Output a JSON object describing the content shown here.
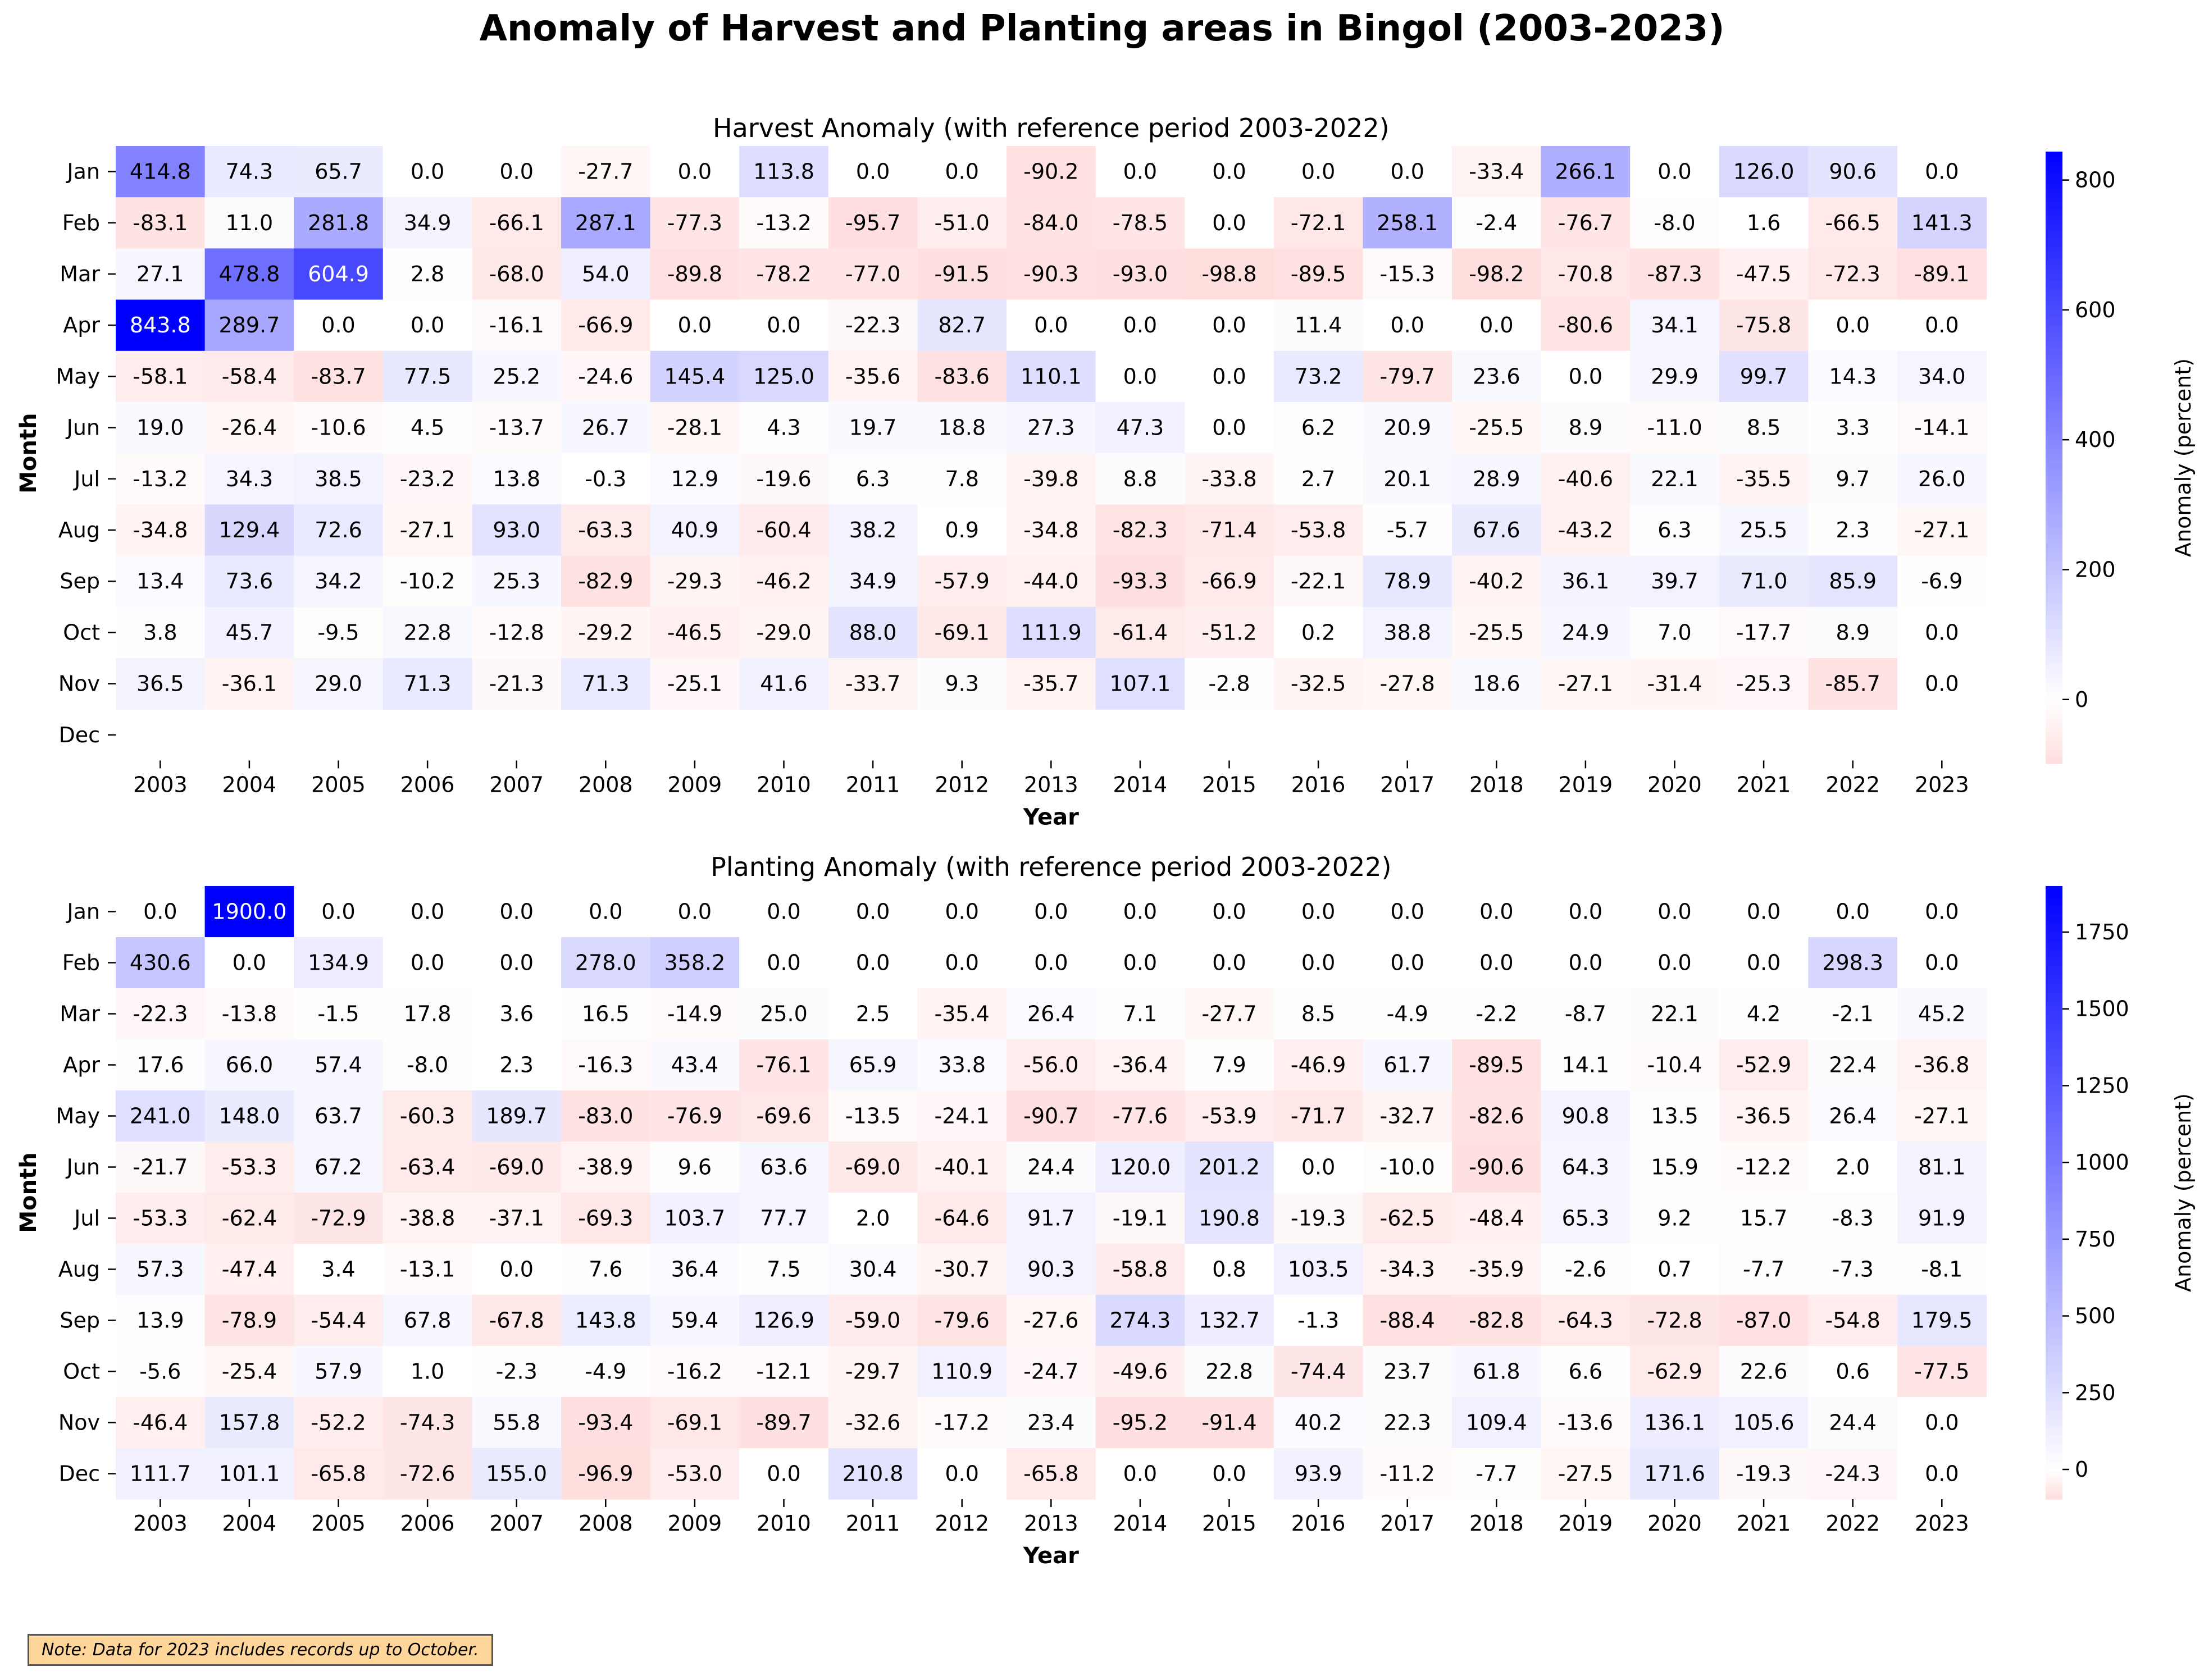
{
  "title": "Anomaly of Harvest and Planting areas in Bingol (2003-2023)",
  "note": "Note: Data for 2023 includes records up to October.",
  "colors": {
    "positive": "#0000ff",
    "zero": "#ffffff",
    "negative": "#ffdede",
    "text_dark": "#000000",
    "text_light": "#ffffff"
  },
  "chart_data": [
    {
      "type": "heatmap",
      "title": "Harvest Anomaly (with reference period 2003-2022)",
      "xlabel": "Year",
      "ylabel": "Month",
      "colorbar_label": "Anomaly (percent)",
      "colorbar_ticks": [
        0,
        200,
        400,
        600,
        800
      ],
      "vmin": -98.8,
      "vmax": 843.8,
      "x": [
        "2003",
        "2004",
        "2005",
        "2006",
        "2007",
        "2008",
        "2009",
        "2010",
        "2011",
        "2012",
        "2013",
        "2014",
        "2015",
        "2016",
        "2017",
        "2018",
        "2019",
        "2020",
        "2021",
        "2022",
        "2023"
      ],
      "y": [
        "Jan",
        "Feb",
        "Mar",
        "Apr",
        "May",
        "Jun",
        "Jul",
        "Aug",
        "Sep",
        "Oct",
        "Nov",
        "Dec"
      ],
      "values": [
        [
          414.8,
          74.3,
          65.7,
          0.0,
          0.0,
          -27.7,
          0.0,
          113.8,
          0.0,
          0.0,
          -90.2,
          0.0,
          0.0,
          0.0,
          0.0,
          -33.4,
          266.1,
          0.0,
          126.0,
          90.6,
          0.0
        ],
        [
          -83.1,
          11.0,
          281.8,
          34.9,
          -66.1,
          287.1,
          -77.3,
          -13.2,
          -95.7,
          -51.0,
          -84.0,
          -78.5,
          0.0,
          -72.1,
          258.1,
          -2.4,
          -76.7,
          -8.0,
          1.6,
          -66.5,
          141.3
        ],
        [
          27.1,
          478.8,
          604.9,
          2.8,
          -68.0,
          54.0,
          -89.8,
          -78.2,
          -77.0,
          -91.5,
          -90.3,
          -93.0,
          -98.8,
          -89.5,
          -15.3,
          -98.2,
          -70.8,
          -87.3,
          -47.5,
          -72.3,
          -89.1
        ],
        [
          843.8,
          289.7,
          0.0,
          0.0,
          -16.1,
          -66.9,
          0.0,
          0.0,
          -22.3,
          82.7,
          0.0,
          0.0,
          0.0,
          11.4,
          0.0,
          0.0,
          -80.6,
          34.1,
          -75.8,
          0.0,
          0.0
        ],
        [
          -58.1,
          -58.4,
          -83.7,
          77.5,
          25.2,
          -24.6,
          145.4,
          125.0,
          -35.6,
          -83.6,
          110.1,
          0.0,
          0.0,
          73.2,
          -79.7,
          23.6,
          0.0,
          29.9,
          99.7,
          14.3,
          34.0
        ],
        [
          19.0,
          -26.4,
          -10.6,
          4.5,
          -13.7,
          26.7,
          -28.1,
          4.3,
          19.7,
          18.8,
          27.3,
          47.3,
          0.0,
          6.2,
          20.9,
          -25.5,
          8.9,
          -11.0,
          8.5,
          3.3,
          -14.1
        ],
        [
          -13.2,
          34.3,
          38.5,
          -23.2,
          13.8,
          -0.3,
          12.9,
          -19.6,
          6.3,
          7.8,
          -39.8,
          8.8,
          -33.8,
          2.7,
          20.1,
          28.9,
          -40.6,
          22.1,
          -35.5,
          9.7,
          26.0
        ],
        [
          -34.8,
          129.4,
          72.6,
          -27.1,
          93.0,
          -63.3,
          40.9,
          -60.4,
          38.2,
          0.9,
          -34.8,
          -82.3,
          -71.4,
          -53.8,
          -5.7,
          67.6,
          -43.2,
          6.3,
          25.5,
          2.3,
          -27.1
        ],
        [
          13.4,
          73.6,
          34.2,
          -10.2,
          25.3,
          -82.9,
          -29.3,
          -46.2,
          34.9,
          -57.9,
          -44.0,
          -93.3,
          -66.9,
          -22.1,
          78.9,
          -40.2,
          36.1,
          39.7,
          71.0,
          85.9,
          -6.9
        ],
        [
          3.8,
          45.7,
          -9.5,
          22.8,
          -12.8,
          -29.2,
          -46.5,
          -29.0,
          88.0,
          -69.1,
          111.9,
          -61.4,
          -51.2,
          0.2,
          38.8,
          -25.5,
          24.9,
          7.0,
          -17.7,
          8.9,
          0.0
        ],
        [
          36.5,
          -36.1,
          29.0,
          71.3,
          -21.3,
          71.3,
          -25.1,
          41.6,
          -33.7,
          9.3,
          -35.7,
          107.1,
          -2.8,
          -32.5,
          -27.8,
          18.6,
          -27.1,
          -31.4,
          -25.3,
          -85.7,
          0.0
        ],
        [
          null,
          null,
          null,
          null,
          null,
          null,
          null,
          null,
          null,
          null,
          null,
          null,
          null,
          null,
          null,
          null,
          null,
          null,
          null,
          null,
          null
        ]
      ]
    },
    {
      "type": "heatmap",
      "title": "Planting Anomaly (with reference period 2003-2022)",
      "xlabel": "Year",
      "ylabel": "Month",
      "colorbar_label": "Anomaly (percent)",
      "colorbar_ticks": [
        0,
        250,
        500,
        750,
        1000,
        1250,
        1500,
        1750
      ],
      "vmin": -96.9,
      "vmax": 1900.0,
      "x": [
        "2003",
        "2004",
        "2005",
        "2006",
        "2007",
        "2008",
        "2009",
        "2010",
        "2011",
        "2012",
        "2013",
        "2014",
        "2015",
        "2016",
        "2017",
        "2018",
        "2019",
        "2020",
        "2021",
        "2022",
        "2023"
      ],
      "y": [
        "Jan",
        "Feb",
        "Mar",
        "Apr",
        "May",
        "Jun",
        "Jul",
        "Aug",
        "Sep",
        "Oct",
        "Nov",
        "Dec"
      ],
      "values": [
        [
          0.0,
          1900.0,
          0.0,
          0.0,
          0.0,
          0.0,
          0.0,
          0.0,
          0.0,
          0.0,
          0.0,
          0.0,
          0.0,
          0.0,
          0.0,
          0.0,
          0.0,
          0.0,
          0.0,
          0.0,
          0.0
        ],
        [
          430.6,
          0.0,
          134.9,
          0.0,
          0.0,
          278.0,
          358.2,
          0.0,
          0.0,
          0.0,
          0.0,
          0.0,
          0.0,
          0.0,
          0.0,
          0.0,
          0.0,
          0.0,
          0.0,
          298.3,
          0.0
        ],
        [
          -22.3,
          -13.8,
          -1.5,
          17.8,
          3.6,
          16.5,
          -14.9,
          25.0,
          2.5,
          -35.4,
          26.4,
          7.1,
          -27.7,
          8.5,
          -4.9,
          -2.2,
          -8.7,
          22.1,
          4.2,
          -2.1,
          45.2
        ],
        [
          17.6,
          66.0,
          57.4,
          -8.0,
          2.3,
          -16.3,
          43.4,
          -76.1,
          65.9,
          33.8,
          -56.0,
          -36.4,
          7.9,
          -46.9,
          61.7,
          -89.5,
          14.1,
          -10.4,
          -52.9,
          22.4,
          -36.8
        ],
        [
          241.0,
          148.0,
          63.7,
          -60.3,
          189.7,
          -83.0,
          -76.9,
          -69.6,
          -13.5,
          -24.1,
          -90.7,
          -77.6,
          -53.9,
          -71.7,
          -32.7,
          -82.6,
          90.8,
          13.5,
          -36.5,
          26.4,
          -27.1
        ],
        [
          -21.7,
          -53.3,
          67.2,
          -63.4,
          -69.0,
          -38.9,
          9.6,
          63.6,
          -69.0,
          -40.1,
          24.4,
          120.0,
          201.2,
          0.0,
          -10.0,
          -90.6,
          64.3,
          15.9,
          -12.2,
          2.0,
          81.1
        ],
        [
          -53.3,
          -62.4,
          -72.9,
          -38.8,
          -37.1,
          -69.3,
          103.7,
          77.7,
          2.0,
          -64.6,
          91.7,
          -19.1,
          190.8,
          -19.3,
          -62.5,
          -48.4,
          65.3,
          9.2,
          15.7,
          -8.3,
          91.9
        ],
        [
          57.3,
          -47.4,
          3.4,
          -13.1,
          0.0,
          7.6,
          36.4,
          7.5,
          30.4,
          -30.7,
          90.3,
          -58.8,
          0.8,
          103.5,
          -34.3,
          -35.9,
          -2.6,
          0.7,
          -7.7,
          -7.3,
          -8.1
        ],
        [
          13.9,
          -78.9,
          -54.4,
          67.8,
          -67.8,
          143.8,
          59.4,
          126.9,
          -59.0,
          -79.6,
          -27.6,
          274.3,
          132.7,
          -1.3,
          -88.4,
          -82.8,
          -64.3,
          -72.8,
          -87.0,
          -54.8,
          179.5
        ],
        [
          -5.6,
          -25.4,
          57.9,
          1.0,
          -2.3,
          -4.9,
          -16.2,
          -12.1,
          -29.7,
          110.9,
          -24.7,
          -49.6,
          22.8,
          -74.4,
          23.7,
          61.8,
          6.6,
          -62.9,
          22.6,
          0.6,
          -77.5
        ],
        [
          -46.4,
          157.8,
          -52.2,
          -74.3,
          55.8,
          -93.4,
          -69.1,
          -89.7,
          -32.6,
          -17.2,
          23.4,
          -95.2,
          -91.4,
          40.2,
          22.3,
          109.4,
          -13.6,
          136.1,
          105.6,
          24.4,
          0.0
        ],
        [
          111.7,
          101.1,
          -65.8,
          -72.6,
          155.0,
          -96.9,
          -53.0,
          0.0,
          210.8,
          0.0,
          -65.8,
          0.0,
          0.0,
          93.9,
          -11.2,
          -7.7,
          -27.5,
          171.6,
          -19.3,
          -24.3,
          0.0
        ]
      ]
    }
  ]
}
